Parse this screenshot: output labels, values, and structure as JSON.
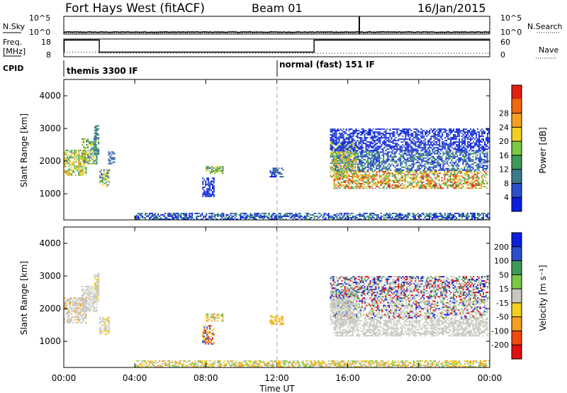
{
  "header": {
    "title": "Fort Hays West (fitACF)",
    "beam": "Beam 01",
    "date": "16/Jan/2015"
  },
  "colors": {
    "axis": "#000000",
    "noon_line": "#aaaaaa"
  },
  "chart_data": [
    {
      "type": "line",
      "panel": "noise",
      "left_label": "N.Sky",
      "right_label": "N.Search",
      "left_ticks": [
        "10^5",
        "10^0"
      ],
      "right_ticks": [
        "10^5",
        "10^0"
      ],
      "ylim_log10": [
        0,
        5
      ],
      "series": [
        {
          "name": "N.Sky",
          "style": "solid",
          "base_log10": 0.55
        },
        {
          "name": "N.Search",
          "style": "dotted",
          "base_log10": 0.3
        }
      ],
      "spikes": [
        {
          "x_hours": 16.65,
          "height_log10": 5
        }
      ]
    },
    {
      "type": "line",
      "panel": "freq_nave",
      "left_label_1": "Freq.",
      "left_label_2": "[MHz]",
      "right_label": "Nave",
      "left_ticks": [
        "18",
        "8"
      ],
      "right_ticks": [
        "60",
        "0"
      ],
      "freq_ylim": [
        8,
        18
      ],
      "nave_ylim": [
        0,
        60
      ],
      "freq_segments": [
        {
          "x0": 0,
          "x1": 0.02,
          "mhz": 10.6
        },
        {
          "x0": 0.02,
          "x1": 2.0,
          "mhz": 17.4
        },
        {
          "x0": 2.0,
          "x1": 14.1,
          "mhz": 10.6
        },
        {
          "x0": 14.1,
          "x1": 24.0,
          "mhz": 17.4
        }
      ],
      "nave_segments": [
        {
          "x0": 0,
          "x1": 2.0,
          "nave": 15
        },
        {
          "x0": 2.0,
          "x1": 24.0,
          "nave": 12
        }
      ]
    },
    {
      "type": "table",
      "panel": "cpid",
      "label": "CPID",
      "entries": [
        {
          "x_hours": 0,
          "text": "themis 3300 IF"
        },
        {
          "x_hours": 12,
          "text": "normal (fast) 151 IF"
        }
      ]
    },
    {
      "type": "heatmap",
      "panel": "power",
      "ylabel": "Slant Range [km]",
      "yticks": [
        1000,
        2000,
        3000,
        4000
      ],
      "ylim": [
        200,
        4500
      ],
      "xlim": [
        0,
        24
      ],
      "colorbar": {
        "label": "Power [dB]",
        "ticks": [
          "4",
          "8",
          "12",
          "16",
          "20",
          "24",
          "28"
        ],
        "colors": [
          "#0a1ee0",
          "#2b4fc8",
          "#3a7a8a",
          "#3f9a5a",
          "#7ac845",
          "#f2d020",
          "#f5a020",
          "#f06a10",
          "#e02010"
        ]
      },
      "regions": [
        {
          "x0": 0.0,
          "x1": 1.3,
          "r0": 1550,
          "r1": 2350,
          "levels": [
            3,
            4,
            5,
            6
          ]
        },
        {
          "x0": 1.0,
          "x1": 1.9,
          "r0": 1900,
          "r1": 2700,
          "levels": [
            2,
            3,
            4,
            5
          ]
        },
        {
          "x0": 1.7,
          "x1": 2.0,
          "r0": 2200,
          "r1": 3100,
          "levels": [
            1,
            2,
            3
          ]
        },
        {
          "x0": 2.0,
          "x1": 2.6,
          "r0": 1200,
          "r1": 1750,
          "levels": [
            1,
            3,
            4,
            5
          ]
        },
        {
          "x0": 2.5,
          "x1": 2.9,
          "r0": 1900,
          "r1": 2300,
          "levels": [
            1,
            2
          ]
        },
        {
          "x0": 8.0,
          "x1": 9.0,
          "r0": 1600,
          "r1": 1850,
          "levels": [
            2,
            3,
            4,
            5
          ]
        },
        {
          "x0": 7.8,
          "x1": 8.5,
          "r0": 900,
          "r1": 1500,
          "levels": [
            0,
            1
          ]
        },
        {
          "x0": 11.6,
          "x1": 12.4,
          "r0": 1500,
          "r1": 1800,
          "levels": [
            0,
            1,
            2
          ]
        },
        {
          "x0": 15.1,
          "x1": 23.9,
          "r0": 1700,
          "r1": 2300,
          "levels": [
            0,
            1,
            2,
            3
          ]
        },
        {
          "x0": 15.2,
          "x1": 23.9,
          "r0": 1150,
          "r1": 1700,
          "levels": [
            3,
            4,
            5,
            6,
            7,
            8
          ]
        },
        {
          "x0": 15.0,
          "x1": 16.5,
          "r0": 1500,
          "r1": 2600,
          "levels": [
            3,
            4,
            5,
            6
          ]
        },
        {
          "x0": 15.0,
          "x1": 24.0,
          "r0": 2300,
          "r1": 3000,
          "levels": [
            0,
            1
          ]
        },
        {
          "x0": 4.0,
          "x1": 24.0,
          "r0": 200,
          "r1": 420,
          "levels": [
            0,
            1,
            3
          ]
        }
      ]
    },
    {
      "type": "heatmap",
      "panel": "velocity",
      "ylabel": "Slant Range [km]",
      "yticks": [
        1000,
        2000,
        3000,
        4000
      ],
      "ylim": [
        200,
        4500
      ],
      "xlim": [
        0,
        24
      ],
      "xticks": [
        "00:00",
        "04:00",
        "08:00",
        "12:00",
        "16:00",
        "20:00",
        "00:00"
      ],
      "xlabel": "Time UT",
      "colorbar": {
        "label": "Velocity [m s⁻¹]",
        "ticks": [
          "-200",
          "-100",
          "-50",
          "-15",
          "15",
          "50",
          "100",
          "200"
        ],
        "colors": [
          "#e01010",
          "#f04a10",
          "#f5a020",
          "#f2d020",
          "#c8c8c0",
          "#7ac845",
          "#3f9a5a",
          "#2b4fc8",
          "#0a1ee0"
        ]
      },
      "regions": [
        {
          "x0": 0.0,
          "x1": 1.3,
          "r0": 1550,
          "r1": 2350,
          "levels": [
            4,
            4,
            4,
            4,
            2
          ]
        },
        {
          "x0": 1.0,
          "x1": 1.9,
          "r0": 1900,
          "r1": 2700,
          "levels": [
            4,
            4,
            4
          ]
        },
        {
          "x0": 1.7,
          "x1": 2.0,
          "r0": 2200,
          "r1": 3100,
          "levels": [
            4,
            4,
            3
          ]
        },
        {
          "x0": 2.0,
          "x1": 2.6,
          "r0": 1200,
          "r1": 1750,
          "levels": [
            4,
            4,
            3
          ]
        },
        {
          "x0": 8.0,
          "x1": 9.0,
          "r0": 1600,
          "r1": 1850,
          "levels": [
            2,
            3,
            5,
            4
          ]
        },
        {
          "x0": 7.8,
          "x1": 8.5,
          "r0": 900,
          "r1": 1500,
          "levels": [
            1,
            2,
            3,
            7
          ]
        },
        {
          "x0": 11.6,
          "x1": 12.4,
          "r0": 1500,
          "r1": 1800,
          "levels": [
            2,
            3
          ]
        },
        {
          "x0": 15.1,
          "x1": 23.9,
          "r0": 1700,
          "r1": 2300,
          "levels": [
            4,
            4,
            4,
            4,
            0,
            8,
            5
          ]
        },
        {
          "x0": 15.2,
          "x1": 23.9,
          "r0": 1150,
          "r1": 1700,
          "levels": [
            4,
            4,
            4,
            4,
            4
          ]
        },
        {
          "x0": 15.0,
          "x1": 16.5,
          "r0": 1500,
          "r1": 2600,
          "levels": [
            4,
            4,
            4
          ]
        },
        {
          "x0": 15.0,
          "x1": 24.0,
          "r0": 2300,
          "r1": 3000,
          "levels": [
            4,
            4,
            0,
            8,
            6
          ]
        },
        {
          "x0": 4.0,
          "x1": 24.0,
          "r0": 200,
          "r1": 420,
          "levels": [
            2,
            3,
            4,
            5
          ]
        }
      ]
    }
  ]
}
